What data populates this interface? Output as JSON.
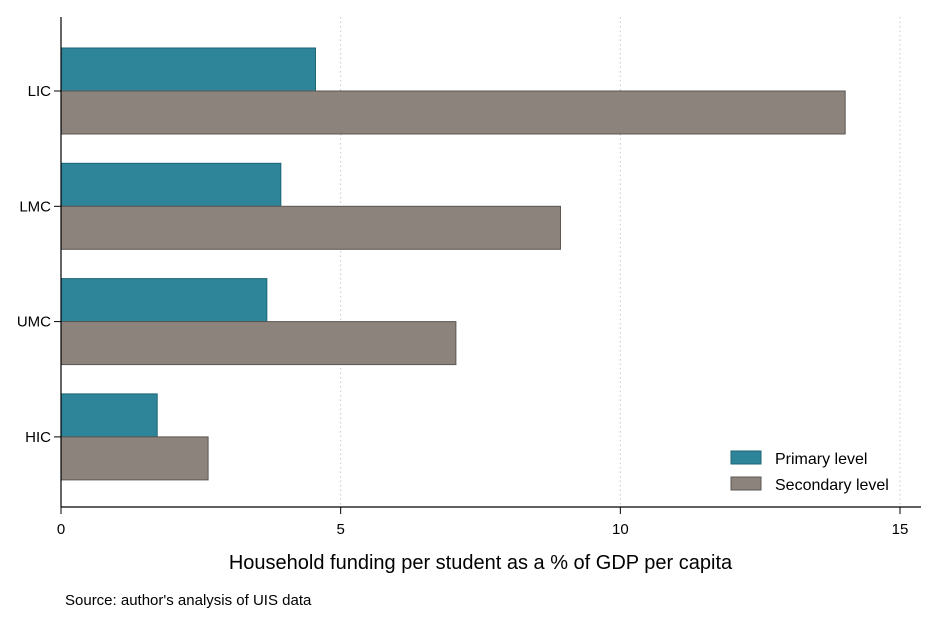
{
  "chart_data": {
    "type": "bar",
    "orientation": "horizontal",
    "categories": [
      "LIC",
      "LMC",
      "UMC",
      "HIC"
    ],
    "series": [
      {
        "name": "Primary level",
        "values": [
          4.55,
          3.93,
          3.68,
          1.72
        ],
        "color": "#2e8599"
      },
      {
        "name": "Secondary level",
        "values": [
          14.02,
          8.93,
          7.06,
          2.63
        ],
        "color": "#8b837c"
      }
    ],
    "xlabel": "Household funding per student as a % of GDP per capita",
    "ylabel": "",
    "xlim": [
      0,
      15
    ],
    "xticks": [
      "0",
      "5",
      "10",
      "15"
    ],
    "grid": "vertical dotted",
    "legend_position": "bottom-right"
  },
  "source_note": "Source: author's analysis of UIS data"
}
